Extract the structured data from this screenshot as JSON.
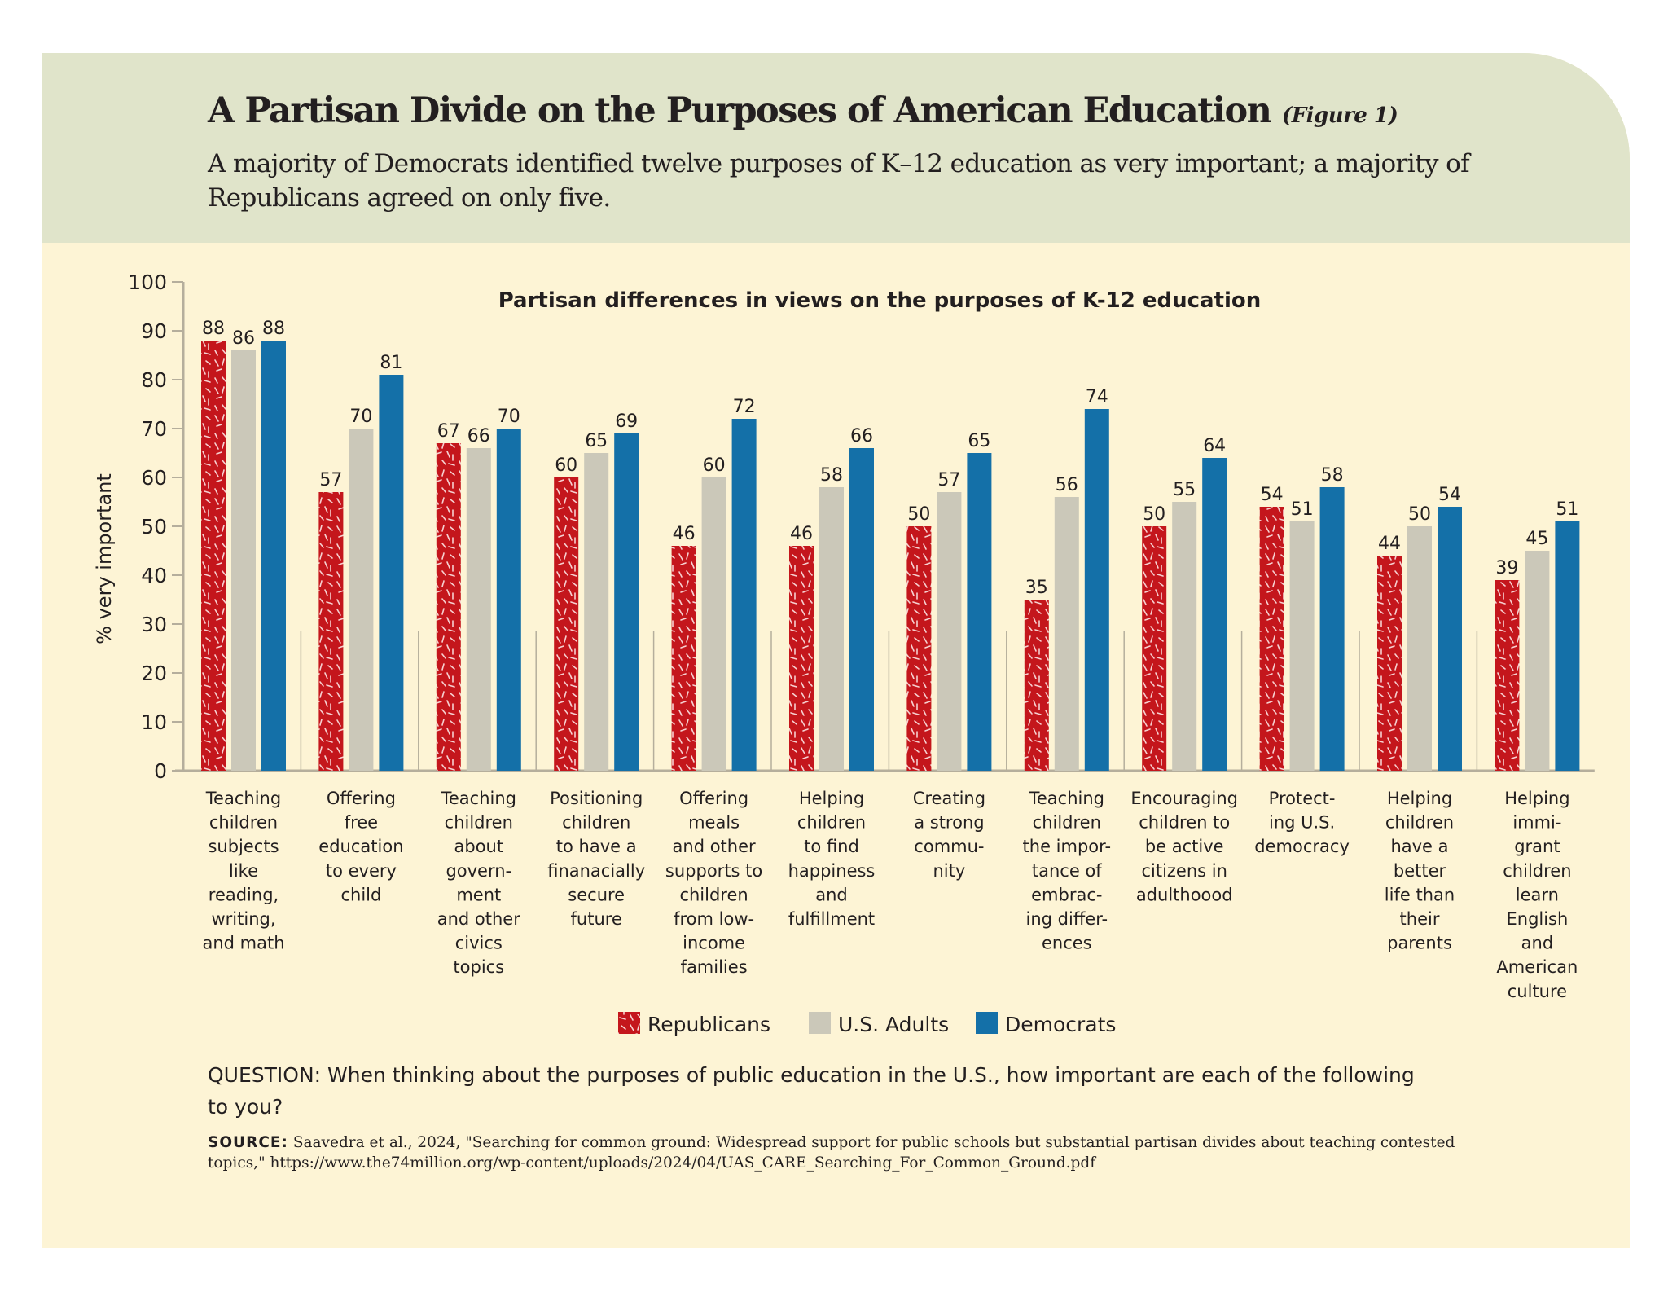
{
  "header": {
    "title": "A Partisan Divide on the Purposes of American Education",
    "figure_label": "(Figure 1)",
    "subtitle": "A majority of Democrats identified twelve purposes of K–12 education as very important; a majority of Republicans agreed on only five."
  },
  "chart_data": {
    "type": "bar",
    "title": "Partisan differences in views on the purposes of K-12 education",
    "xlabel": "",
    "ylabel": "% very important",
    "ylim": [
      0,
      100
    ],
    "yticks": [
      0,
      10,
      20,
      30,
      40,
      50,
      60,
      70,
      80,
      90,
      100
    ],
    "grid": false,
    "legend_placement": "bottom",
    "categories": [
      "Teaching children subjects like reading, writing, and math",
      "Offering free education to every child",
      "Teaching children about govern- ment and other civics topics",
      "Positioning children to have a finanacially secure future",
      "Offering meals and other supports to children from low- income families",
      "Helping children to find happiness and fulfillment",
      "Creating a strong commu- nity",
      "Teaching children the impor- tance of embrac- ing differ- ences",
      "Encouraging children to be active citizens in adulthoood",
      "Protect- ing U.S. democracy",
      "Helping children have a better life than their parents",
      "Helping immi- grant children learn English and American culture"
    ],
    "category_lines": [
      [
        "Teaching",
        "children",
        "subjects",
        "like",
        "reading,",
        "writing,",
        "and math"
      ],
      [
        "Offering",
        "free",
        "education",
        "to every",
        "child"
      ],
      [
        "Teaching",
        "children",
        "about",
        "govern-",
        "ment",
        "and other",
        "civics",
        "topics"
      ],
      [
        "Positioning",
        "children",
        "to have a",
        "finanacially",
        "secure",
        "future"
      ],
      [
        "Offering",
        "meals",
        "and other",
        "supports to",
        "children",
        "from low-",
        "income",
        "families"
      ],
      [
        "Helping",
        "children",
        "to find",
        "happiness",
        "and",
        "fulfillment"
      ],
      [
        "Creating",
        "a strong",
        "commu-",
        "nity"
      ],
      [
        "Teaching",
        "children",
        "the impor-",
        "tance of",
        "embrac-",
        "ing differ-",
        "ences"
      ],
      [
        "Encouraging",
        "children to",
        "be active",
        "citizens in",
        "adulthoood"
      ],
      [
        "Protect-",
        "ing U.S.",
        "democracy"
      ],
      [
        "Helping",
        "children",
        "have a",
        "better",
        "life than",
        "their",
        "parents"
      ],
      [
        "Helping",
        "immi-",
        "grant",
        "children",
        "learn",
        "English",
        "and",
        "American",
        "culture"
      ]
    ],
    "series": [
      {
        "name": "Republicans",
        "color": "#c4161c",
        "pattern": "white-dashes",
        "values": [
          88,
          57,
          67,
          60,
          46,
          46,
          50,
          35,
          50,
          54,
          44,
          39
        ]
      },
      {
        "name": "U.S. Adults",
        "color": "#cbc8b9",
        "values": [
          86,
          70,
          66,
          65,
          60,
          58,
          57,
          56,
          55,
          51,
          50,
          45
        ]
      },
      {
        "name": "Democrats",
        "color": "#1470a8",
        "values": [
          88,
          81,
          70,
          69,
          72,
          66,
          65,
          74,
          64,
          58,
          54,
          51
        ]
      }
    ]
  },
  "footer": {
    "question": "QUESTION: When thinking about the purposes of public education in the U.S., how important are each of the following to you?",
    "source_label": "SOURCE:",
    "source_text": "Saavedra et al., 2024, \"Searching for common ground: Widespread support for public schools but substantial partisan divides about teaching contested topics,\" https://www.the74million.org/wp-content/uploads/2024/04/UAS_CARE_Searching_For_Common_Ground.pdf"
  }
}
